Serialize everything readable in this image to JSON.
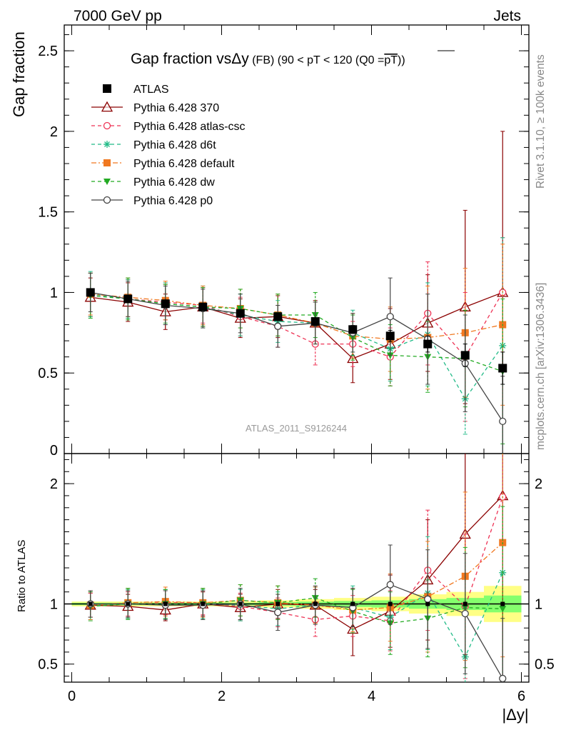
{
  "header": {
    "left": "7000 GeV pp",
    "right": "Jets"
  },
  "side_labels": {
    "rivet": "Rivet 3.1.10, ≥ 100k events",
    "mcplots": "mcplots.cern.ch [arXiv:1306.3436]"
  },
  "chart_data": [
    {
      "type": "scatter",
      "panel": "main",
      "title_parts": [
        "Gap fraction vs",
        "Δy",
        " (FB)",
        " (90 < pT < 120 (Q0 =",
        "pT",
        "))"
      ],
      "ylabel": "Gap fraction",
      "analysis_tag": "ATLAS_2011_S9126244",
      "xlim": [
        -0.1,
        6.1
      ],
      "ylim": [
        0,
        2.66
      ],
      "yticks": [
        {
          "value": 0.5,
          "label": "0.5"
        },
        {
          "value": 1,
          "label": "1"
        },
        {
          "value": 1.5,
          "label": "1.5"
        },
        {
          "value": 2,
          "label": "2"
        },
        {
          "value": 2.5,
          "label": "2.5"
        }
      ],
      "x": [
        0.25,
        0.75,
        1.25,
        1.75,
        2.25,
        2.75,
        3.25,
        3.75,
        4.25,
        4.75,
        5.25,
        5.75
      ],
      "series": [
        {
          "name": "ATLAS",
          "color": "#000000",
          "marker": "square-filled",
          "line": "none",
          "values": [
            1.0,
            0.96,
            0.93,
            0.91,
            0.87,
            0.85,
            0.82,
            0.77,
            0.73,
            0.68,
            0.61,
            0.53
          ],
          "err": [
            0.003,
            0.004,
            0.006,
            0.008,
            0.01,
            0.013,
            0.017,
            0.025,
            0.035,
            0.05,
            0.07,
            0.1
          ]
        },
        {
          "name": "Pythia 6.428 370",
          "color": "#8b0000",
          "marker": "triangle-open",
          "line": "solid",
          "values": [
            0.97,
            0.94,
            0.88,
            0.91,
            0.84,
            0.85,
            0.81,
            0.59,
            0.68,
            0.81,
            0.91,
            1.0
          ],
          "err": [
            0.12,
            0.12,
            0.11,
            0.12,
            0.12,
            0.13,
            0.14,
            0.15,
            0.22,
            0.3,
            0.6,
            1.0
          ]
        },
        {
          "name": "Pythia 6.428 atlas-csc",
          "color": "#ee3355",
          "marker": "circle-open",
          "line": "dashed",
          "values": [
            0.99,
            0.96,
            0.94,
            0.92,
            0.85,
            0.79,
            0.68,
            0.68,
            0.6,
            0.87,
            0.6,
            1.0
          ],
          "err": [
            0.13,
            0.12,
            0.11,
            0.11,
            0.12,
            0.13,
            0.13,
            0.14,
            0.18,
            0.32,
            0.4,
            0.34
          ]
        },
        {
          "name": "Pythia 6.428 d6t",
          "color": "#22bb88",
          "marker": "star",
          "line": "dashed",
          "values": [
            0.99,
            0.96,
            0.93,
            0.91,
            0.86,
            0.82,
            0.81,
            0.75,
            0.65,
            0.74,
            0.34,
            0.67
          ],
          "err": [
            0.14,
            0.12,
            0.13,
            0.13,
            0.13,
            0.13,
            0.13,
            0.14,
            0.2,
            0.32,
            0.22,
            0.67
          ]
        },
        {
          "name": "Pythia 6.428 default",
          "color": "#f07820",
          "marker": "square-filled",
          "line": "dashdot",
          "values": [
            0.99,
            0.97,
            0.95,
            0.92,
            0.9,
            0.86,
            0.81,
            0.73,
            0.71,
            0.72,
            0.75,
            0.8
          ],
          "err": [
            0.13,
            0.12,
            0.12,
            0.12,
            0.12,
            0.13,
            0.13,
            0.14,
            0.2,
            0.32,
            0.4,
            0.5
          ]
        },
        {
          "name": "Pythia 6.428 dw",
          "color": "#22aa22",
          "marker": "triangle-down-filled",
          "line": "dashed",
          "values": [
            0.98,
            0.96,
            0.93,
            0.91,
            0.9,
            0.86,
            0.86,
            0.72,
            0.61,
            0.6,
            0.59,
            0.51
          ],
          "err": [
            0.14,
            0.13,
            0.12,
            0.12,
            0.12,
            0.13,
            0.14,
            0.14,
            0.19,
            0.22,
            0.3,
            0.45
          ]
        },
        {
          "name": "Pythia 6.428 p0",
          "color": "#444444",
          "marker": "circle-open",
          "line": "solid",
          "values": [
            1.0,
            0.96,
            0.92,
            0.9,
            0.87,
            0.79,
            0.81,
            0.75,
            0.85,
            0.71,
            0.56,
            0.2
          ],
          "err": [
            0.12,
            0.11,
            0.12,
            0.12,
            0.12,
            0.13,
            0.13,
            0.12,
            0.24,
            0.28,
            0.3,
            0.28
          ]
        }
      ]
    },
    {
      "type": "scatter",
      "panel": "ratio",
      "ylabel": "Ratio to ATLAS",
      "xlabel": "|Δy|",
      "xlim": [
        -0.1,
        6.1
      ],
      "ylim": [
        0.35,
        2.25
      ],
      "xticks": [
        {
          "value": 0,
          "label": "0"
        },
        {
          "value": 2,
          "label": "2"
        },
        {
          "value": 4,
          "label": "4"
        },
        {
          "value": 6,
          "label": "6"
        }
      ],
      "yticks": [
        {
          "value": 0.5,
          "label": "0.5"
        },
        {
          "value": 1,
          "label": "1"
        },
        {
          "value": 2,
          "label": "2"
        }
      ],
      "bands": {
        "x_edges": [
          0,
          0.5,
          1,
          1.5,
          2,
          2.5,
          3,
          3.5,
          4,
          4.5,
          5,
          5.5,
          6
        ],
        "yellow": [
          0.02,
          0.02,
          0.02,
          0.02,
          0.02,
          0.03,
          0.04,
          0.05,
          0.06,
          0.08,
          0.1,
          0.15
        ],
        "green": [
          0.01,
          0.01,
          0.01,
          0.01,
          0.01,
          0.015,
          0.02,
          0.025,
          0.03,
          0.04,
          0.05,
          0.07
        ]
      },
      "x": [
        0.25,
        0.75,
        1.25,
        1.75,
        2.25,
        2.75,
        3.25,
        3.75,
        4.25,
        4.75,
        5.25,
        5.75
      ],
      "series": [
        {
          "name": "Pythia 6.428 370",
          "values": [
            0.99,
            0.98,
            0.95,
            1.0,
            0.97,
            1.0,
            0.99,
            0.79,
            0.94,
            1.2,
            1.58,
            1.9
          ],
          "err": [
            0.1,
            0.1,
            0.09,
            0.1,
            0.11,
            0.12,
            0.13,
            0.22,
            0.3,
            0.5,
            1.0,
            1.9
          ]
        },
        {
          "name": "Pythia 6.428 atlas-csc",
          "values": [
            0.99,
            1.0,
            1.01,
            1.01,
            0.98,
            0.93,
            0.87,
            0.9,
            0.86,
            1.28,
            0.98,
            1.89
          ],
          "err": [
            0.1,
            0.1,
            0.1,
            0.1,
            0.11,
            0.12,
            0.14,
            0.17,
            0.25,
            0.5,
            0.6,
            0.64
          ]
        },
        {
          "name": "Pythia 6.428 d6t",
          "values": [
            0.99,
            1.0,
            1.0,
            1.0,
            0.99,
            0.96,
            0.99,
            0.97,
            0.89,
            1.09,
            0.56,
            1.26
          ],
          "err": [
            0.12,
            0.12,
            0.12,
            0.12,
            0.13,
            0.14,
            0.15,
            0.18,
            0.27,
            0.47,
            0.4,
            1.26
          ]
        },
        {
          "name": "Pythia 6.428 default",
          "values": [
            0.99,
            1.01,
            1.02,
            1.01,
            1.03,
            1.01,
            0.99,
            0.95,
            0.97,
            1.06,
            1.23,
            1.51
          ],
          "err": [
            0.12,
            0.12,
            0.12,
            0.12,
            0.13,
            0.14,
            0.15,
            0.18,
            0.28,
            0.46,
            0.7,
            0.95
          ]
        },
        {
          "name": "Pythia 6.428 dw",
          "values": [
            0.98,
            1.0,
            1.0,
            1.0,
            1.03,
            1.01,
            1.05,
            0.94,
            0.84,
            0.88,
            0.97,
            0.96
          ],
          "err": [
            0.12,
            0.13,
            0.12,
            0.13,
            0.13,
            0.14,
            0.16,
            0.18,
            0.26,
            0.32,
            0.5,
            0.85
          ]
        },
        {
          "name": "Pythia 6.428 p0",
          "values": [
            1.0,
            1.0,
            0.99,
            0.99,
            1.0,
            0.93,
            0.99,
            0.97,
            1.16,
            1.04,
            0.92,
            0.38
          ],
          "err": [
            0.11,
            0.11,
            0.12,
            0.12,
            0.13,
            0.15,
            0.16,
            0.16,
            0.33,
            0.41,
            0.5,
            0.5
          ]
        }
      ]
    }
  ]
}
